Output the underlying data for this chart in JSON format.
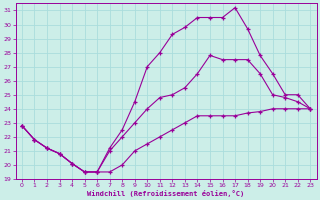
{
  "xlabel": "Windchill (Refroidissement éolien,°C)",
  "bg_color": "#cceee8",
  "line_color": "#990099",
  "grid_color": "#aadddd",
  "xlim": [
    -0.5,
    23.5
  ],
  "ylim": [
    19,
    31.5
  ],
  "xticks": [
    0,
    1,
    2,
    3,
    4,
    5,
    6,
    7,
    8,
    9,
    10,
    11,
    12,
    13,
    14,
    15,
    16,
    17,
    18,
    19,
    20,
    21,
    22,
    23
  ],
  "yticks": [
    19,
    20,
    21,
    22,
    23,
    24,
    25,
    26,
    27,
    28,
    29,
    30,
    31
  ],
  "line1_x": [
    0,
    1,
    2,
    3,
    4,
    5,
    6,
    7,
    8,
    9,
    10,
    11,
    12,
    13,
    14,
    15,
    16,
    17,
    18,
    19,
    20,
    21,
    22,
    23
  ],
  "line1_y": [
    22.8,
    21.8,
    21.2,
    20.8,
    20.1,
    19.5,
    19.5,
    19.5,
    20.0,
    21.0,
    21.5,
    22.0,
    22.5,
    23.0,
    23.5,
    23.5,
    23.5,
    23.5,
    23.7,
    23.8,
    24.0,
    24.0,
    24.0,
    24.0
  ],
  "line2_x": [
    0,
    1,
    2,
    3,
    4,
    5,
    6,
    7,
    8,
    9,
    10,
    11,
    12,
    13,
    14,
    15,
    16,
    17,
    18,
    19,
    20,
    21,
    22,
    23
  ],
  "line2_y": [
    22.8,
    21.8,
    21.2,
    20.8,
    20.1,
    19.5,
    19.5,
    21.2,
    22.5,
    24.5,
    27.0,
    28.0,
    29.3,
    29.8,
    30.5,
    30.5,
    30.5,
    31.2,
    29.7,
    27.8,
    26.5,
    25.0,
    25.0,
    24.0
  ],
  "line3_x": [
    0,
    1,
    2,
    3,
    4,
    5,
    6,
    7,
    8,
    9,
    10,
    11,
    12,
    13,
    14,
    15,
    16,
    17,
    18,
    19,
    20,
    21,
    22,
    23
  ],
  "line3_y": [
    22.8,
    21.8,
    21.2,
    20.8,
    20.1,
    19.5,
    19.5,
    21.0,
    22.0,
    23.0,
    24.0,
    24.8,
    25.0,
    25.5,
    26.5,
    27.8,
    27.5,
    27.5,
    27.5,
    26.5,
    25.0,
    24.8,
    24.5,
    24.0
  ]
}
